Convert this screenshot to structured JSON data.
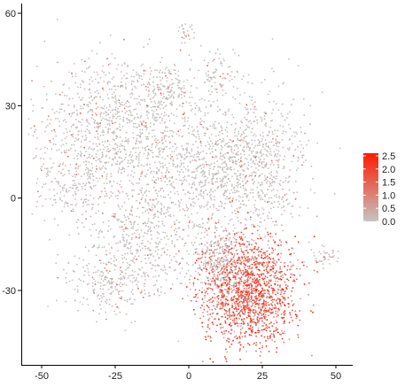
{
  "chart_data": {
    "type": "scatter",
    "title": "",
    "xlabel": "",
    "ylabel": "",
    "xlim": [
      -55,
      55
    ],
    "ylim": [
      -54,
      62
    ],
    "x_ticks": [
      -50,
      -25,
      0,
      25,
      50
    ],
    "y_ticks": [
      -30,
      0,
      30,
      60
    ],
    "x_tick_labels": [
      "-50",
      "-25",
      "0",
      "25",
      "50"
    ],
    "y_tick_labels": [
      "-30",
      "0",
      "30",
      "60"
    ],
    "grid": false,
    "point_count_approx": 6000,
    "color_scale": {
      "low_color": "#c4c4c4",
      "high_color": "#ff1a00",
      "min": 0,
      "max": 2.6,
      "ticks": [
        2.5,
        2.0,
        1.5,
        1.0,
        0.5,
        0.0
      ],
      "tick_labels": [
        "2.5",
        "2.0",
        "1.5",
        "1.0",
        "0.5",
        "0.0"
      ],
      "legend_position": "right"
    },
    "clusters": [
      {
        "cx": -25,
        "cy": 25,
        "sx": 13,
        "sy": 11,
        "n": 900,
        "mean_expr": 0.15
      },
      {
        "cx": -38,
        "cy": 5,
        "sx": 8,
        "sy": 7,
        "n": 250,
        "mean_expr": 0.15
      },
      {
        "cx": -15,
        "cy": -12,
        "sx": 10,
        "sy": 8,
        "n": 400,
        "mean_expr": 0.15
      },
      {
        "cx": -25,
        "cy": -28,
        "sx": 9,
        "sy": 6,
        "n": 250,
        "mean_expr": 0.15
      },
      {
        "cx": 5,
        "cy": 8,
        "sx": 14,
        "sy": 10,
        "n": 800,
        "mean_expr": 0.2
      },
      {
        "cx": 22,
        "cy": 12,
        "sx": 9,
        "sy": 12,
        "n": 600,
        "mean_expr": 0.2
      },
      {
        "cx": 10,
        "cy": 40,
        "sx": 3,
        "sy": 5,
        "n": 80,
        "mean_expr": 0.35
      },
      {
        "cx": -1,
        "cy": 54,
        "sx": 2,
        "sy": 1.5,
        "n": 25,
        "mean_expr": 0.1
      },
      {
        "cx": 20,
        "cy": -30,
        "sx": 8,
        "sy": 9,
        "n": 1600,
        "mean_expr": 1.6
      },
      {
        "cx": 10,
        "cy": -20,
        "sx": 4,
        "sy": 5,
        "n": 250,
        "mean_expr": 1.0
      },
      {
        "cx": 47,
        "cy": -19,
        "sx": 2,
        "sy": 2,
        "n": 40,
        "mean_expr": 0.1
      },
      {
        "cx": -8,
        "cy": 36,
        "sx": 4,
        "sy": 4,
        "n": 120,
        "mean_expr": 0.2
      }
    ]
  }
}
